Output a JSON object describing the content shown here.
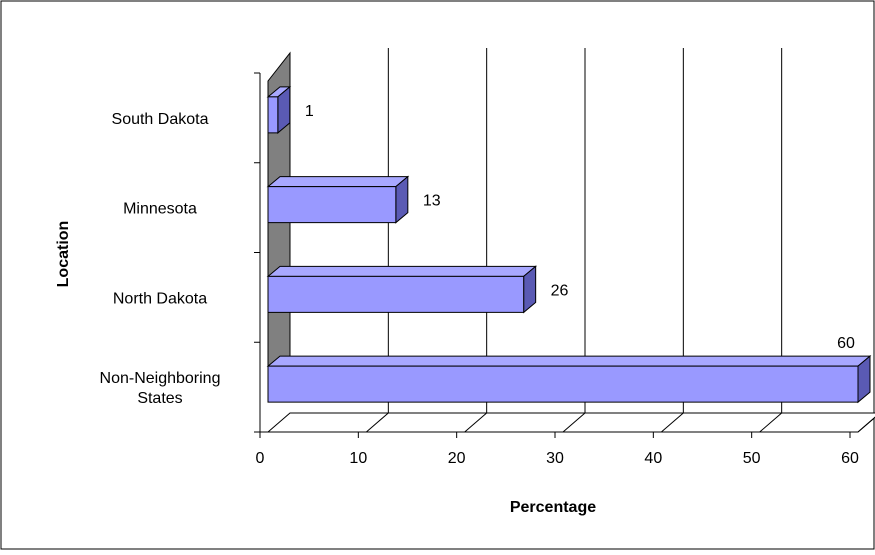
{
  "chart_data": {
    "type": "bar",
    "orientation": "horizontal",
    "style": "3d",
    "title": "",
    "xlabel": "Percentage",
    "ylabel": "Location",
    "categories": [
      "Non-Neighboring States",
      "North Dakota",
      "Minnesota",
      "South Dakota"
    ],
    "category_lines": [
      [
        "Non-Neighboring",
        "States"
      ],
      [
        "North Dakota"
      ],
      [
        "Minnesota"
      ],
      [
        "South Dakota"
      ]
    ],
    "values": [
      60,
      26,
      13,
      1
    ],
    "xlim": [
      0,
      60
    ],
    "xticks": [
      0,
      10,
      20,
      30,
      40,
      50,
      60
    ],
    "grid": true,
    "legend": "none"
  },
  "colors": {
    "bar_front": "#9999ff",
    "bar_top": "#a8a8ff",
    "bar_side": "#5a5ab4",
    "wall": "#808080",
    "gridline": "#000000",
    "border": "#000000"
  }
}
